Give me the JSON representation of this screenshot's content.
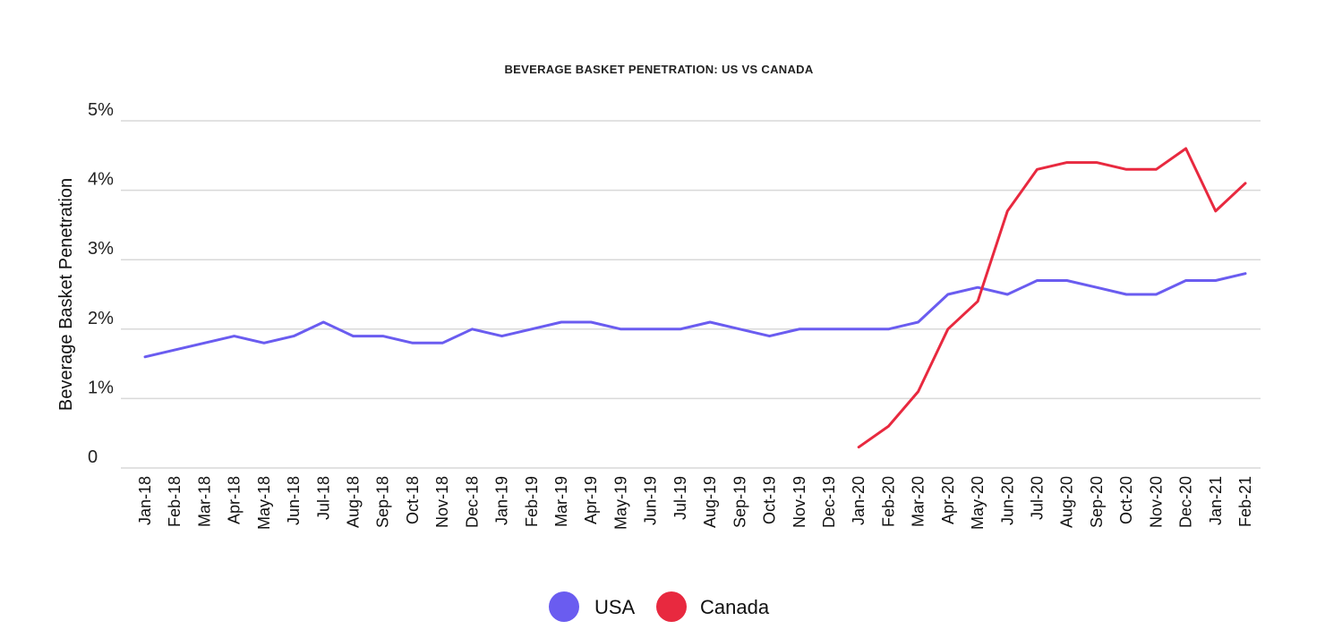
{
  "chart_data": {
    "type": "line",
    "title": "BEVERAGE BASKET PENETRATION: US VS CANADA",
    "xlabel": "",
    "ylabel": "Beverage Basket Penetration",
    "ylim": [
      0,
      5
    ],
    "yticks": [
      {
        "value": 0,
        "label": "0"
      },
      {
        "value": 1,
        "label": "1%"
      },
      {
        "value": 2,
        "label": "2%"
      },
      {
        "value": 3,
        "label": "3%"
      },
      {
        "value": 4,
        "label": "4%"
      },
      {
        "value": 5,
        "label": "5%"
      }
    ],
    "categories": [
      "Jan-18",
      "Feb-18",
      "Mar-18",
      "Apr-18",
      "May-18",
      "Jun-18",
      "Jul-18",
      "Aug-18",
      "Sep-18",
      "Oct-18",
      "Nov-18",
      "Dec-18",
      "Jan-19",
      "Feb-19",
      "Mar-19",
      "Apr-19",
      "May-19",
      "Jun-19",
      "Jul-19",
      "Aug-19",
      "Sep-19",
      "Oct-19",
      "Nov-19",
      "Dec-19",
      "Jan-20",
      "Feb-20",
      "Mar-20",
      "Apr-20",
      "May-20",
      "Jun-20",
      "Jul-20",
      "Aug-20",
      "Sep-20",
      "Oct-20",
      "Nov-20",
      "Dec-20",
      "Jan-21",
      "Feb-21"
    ],
    "series": [
      {
        "name": "USA",
        "color": "#6a5cf0",
        "values": [
          1.6,
          1.7,
          1.8,
          1.9,
          1.8,
          1.9,
          2.1,
          1.9,
          1.9,
          1.8,
          1.8,
          2.0,
          1.9,
          2.0,
          2.1,
          2.1,
          2.0,
          2.0,
          2.0,
          2.1,
          2.0,
          1.9,
          2.0,
          2.0,
          2.0,
          2.0,
          2.1,
          2.5,
          2.6,
          2.5,
          2.7,
          2.7,
          2.6,
          2.5,
          2.5,
          2.7,
          2.7,
          2.8
        ]
      },
      {
        "name": "Canada",
        "color": "#e8293f",
        "values": [
          null,
          null,
          null,
          null,
          null,
          null,
          null,
          null,
          null,
          null,
          null,
          null,
          null,
          null,
          null,
          null,
          null,
          null,
          null,
          null,
          null,
          null,
          null,
          null,
          0.3,
          0.6,
          1.1,
          2.0,
          2.4,
          3.7,
          4.3,
          4.4,
          4.4,
          4.3,
          4.3,
          4.6,
          3.7,
          4.1
        ]
      }
    ],
    "legend_position": "bottom-center",
    "grid": true
  }
}
